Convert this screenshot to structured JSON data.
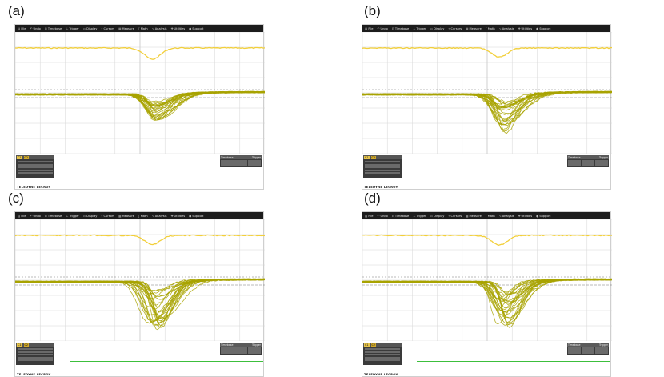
{
  "panels": [
    {
      "label": "(a)"
    },
    {
      "label": "(b)"
    },
    {
      "label": "(c)"
    },
    {
      "label": "(d)"
    }
  ],
  "menu": {
    "items": [
      {
        "icon": "file-icon",
        "glyph": "▤",
        "label": "File"
      },
      {
        "icon": "undo-icon",
        "glyph": "↶",
        "label": "Undo"
      },
      {
        "icon": "timebase-icon",
        "glyph": "⊟",
        "label": "Timebase"
      },
      {
        "icon": "trigger-icon",
        "glyph": "⊥",
        "label": "Trigger"
      },
      {
        "icon": "display-icon",
        "glyph": "▭",
        "label": "Display"
      },
      {
        "icon": "cursors-icon",
        "glyph": "⌖",
        "label": "Cursors"
      },
      {
        "icon": "measure-icon",
        "glyph": "▦",
        "label": "Measure"
      },
      {
        "icon": "math-icon",
        "glyph": "∫",
        "label": "Math"
      },
      {
        "icon": "analysis-icon",
        "glyph": "∿",
        "label": "Analysis"
      },
      {
        "icon": "utilities-icon",
        "glyph": "✚",
        "label": "Utilities"
      },
      {
        "icon": "support-icon",
        "glyph": "●",
        "label": "Support"
      }
    ]
  },
  "infobar": {
    "channel_tags": [
      "C1",
      "C2"
    ],
    "timebase_label": "Timebase",
    "trigger_label": "Trigger",
    "brand": "TELEDYNE LECROY"
  },
  "colors": {
    "trace_top": "#f2cf3a",
    "trace_bottom": "#a8a300",
    "grid": "#d6d6d6",
    "menubar": "#1c1c1c",
    "status_line": "#3cbf3c"
  },
  "traces": {
    "a": {
      "dip_depth": 0.55,
      "spread": 0.18,
      "dip_pos": 0.55,
      "upper_dip": 0.35
    },
    "b": {
      "dip_depth": 0.85,
      "spread": 0.3,
      "dip_pos": 0.55,
      "upper_dip": 0.28
    },
    "c": {
      "dip_depth": 1.0,
      "spread": 0.6,
      "dip_pos": 0.55,
      "upper_dip": 0.28
    },
    "d": {
      "dip_depth": 0.95,
      "spread": 0.55,
      "dip_pos": 0.55,
      "upper_dip": 0.3
    }
  }
}
